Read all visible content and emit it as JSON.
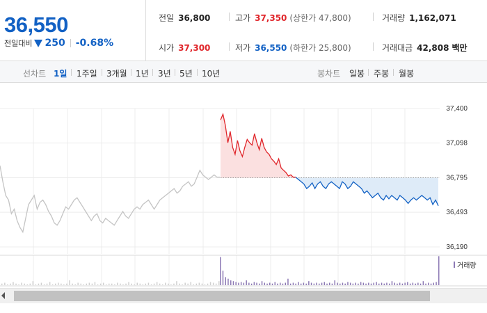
{
  "quote": {
    "price": "36,550",
    "change_label": "전일대비",
    "change_value": "250",
    "change_pct": "-0.68%"
  },
  "stats": {
    "prev_close": {
      "label": "전일",
      "value": "36,800"
    },
    "high": {
      "label": "고가",
      "value": "37,350",
      "sub": "(상한가 47,800)"
    },
    "volume": {
      "label": "거래량",
      "value": "1,162,071"
    },
    "open": {
      "label": "시가",
      "value": "37,300"
    },
    "low": {
      "label": "저가",
      "value": "36,550",
      "sub": "(하한가 25,800)"
    },
    "amount": {
      "label": "거래대금",
      "value": "42,808",
      "unit": "백만"
    }
  },
  "periods": {
    "label": "선차트",
    "items": [
      "1일",
      "1주일",
      "3개월",
      "1년",
      "3년",
      "5년",
      "10년"
    ],
    "selected": "1일"
  },
  "candle_periods": {
    "label": "봉차트",
    "items": [
      "일봉",
      "주봉",
      "월봉"
    ]
  },
  "colors": {
    "up": "#e0262b",
    "down": "#1261c4",
    "past": "#c4c4c4",
    "volume": "#8d7ab5"
  },
  "chart_data": {
    "type": "line",
    "y_ticks": [
      "37,400",
      "37,098",
      "36,795",
      "36,493",
      "36,190"
    ],
    "ylim": [
      36190,
      37400
    ],
    "reference_price": 36795,
    "volume_label": "거래량",
    "previous_session": [
      36900,
      36760,
      36640,
      36600,
      36480,
      36520,
      36420,
      36360,
      36320,
      36440,
      36560,
      36600,
      36640,
      36520,
      36580,
      36600,
      36560,
      36500,
      36460,
      36400,
      36380,
      36420,
      36480,
      36540,
      36520,
      36560,
      36600,
      36620,
      36580,
      36540,
      36500,
      36460,
      36420,
      36460,
      36480,
      36420,
      36400,
      36440,
      36420,
      36400,
      36380,
      36420,
      36460,
      36500,
      36460,
      36440,
      36480,
      36520,
      36540,
      36520,
      36560,
      36580,
      36600,
      36560,
      36520,
      36560,
      36600,
      36620,
      36640,
      36660,
      36680,
      36700,
      36660,
      36680,
      36720,
      36740,
      36760,
      36720,
      36740,
      36800,
      36860,
      36820,
      36800,
      36780,
      36800,
      36820,
      36800,
      36800
    ],
    "session_up": [
      37300,
      37350,
      37250,
      37100,
      37200,
      37060,
      37000,
      37120,
      37030,
      36980,
      37060,
      37130,
      37100,
      37080,
      37180,
      37100,
      37040,
      37140,
      37060,
      37020,
      37000,
      36960,
      36940,
      36910,
      36960,
      36880,
      36860,
      36840,
      36810,
      36820,
      36800,
      36800
    ],
    "session_down": [
      36800,
      36780,
      36760,
      36740,
      36700,
      36720,
      36750,
      36700,
      36740,
      36760,
      36720,
      36700,
      36740,
      36760,
      36740,
      36720,
      36700,
      36760,
      36740,
      36700,
      36720,
      36760,
      36740,
      36720,
      36700,
      36660,
      36680,
      36650,
      36620,
      36640,
      36660,
      36620,
      36600,
      36640,
      36610,
      36640,
      36620,
      36600,
      36640,
      36620,
      36600,
      36570,
      36600,
      36620,
      36600,
      36620,
      36640,
      36620,
      36600,
      36620,
      36560,
      36600,
      36550
    ],
    "volume": {
      "previous_session": [
        2,
        3,
        1,
        2,
        4,
        2,
        1,
        3,
        2,
        1,
        2,
        5,
        1,
        2,
        3,
        1,
        2,
        4,
        1,
        2,
        3,
        2,
        1,
        2,
        6,
        2,
        1,
        3,
        2,
        1,
        2,
        3,
        2,
        4,
        1,
        2,
        3,
        1,
        2,
        2,
        1,
        3,
        2,
        1,
        2,
        4,
        2,
        1,
        3,
        2,
        1,
        2,
        3,
        1,
        2,
        4,
        2,
        1,
        3,
        2,
        1,
        2,
        5,
        2,
        1,
        3,
        2,
        4,
        1,
        2,
        3,
        2,
        1,
        2,
        4,
        3,
        2,
        5
      ],
      "session": [
        35,
        18,
        10,
        8,
        6,
        5,
        4,
        3,
        4,
        3,
        6,
        3,
        2,
        4,
        3,
        2,
        5,
        3,
        2,
        3,
        2,
        4,
        2,
        3,
        2,
        3,
        8,
        2,
        3,
        2,
        4,
        2,
        3,
        2,
        5,
        3,
        2,
        3,
        2,
        3,
        4,
        2,
        3,
        2,
        6,
        3,
        2,
        3,
        2,
        4,
        3,
        2,
        3,
        2,
        4,
        3,
        2,
        3,
        2,
        3,
        4,
        2,
        3,
        2,
        3,
        2,
        5,
        3,
        2,
        3,
        2,
        3,
        4,
        2,
        3,
        2,
        3,
        2,
        5,
        2,
        3,
        2,
        3,
        4,
        36
      ]
    }
  }
}
